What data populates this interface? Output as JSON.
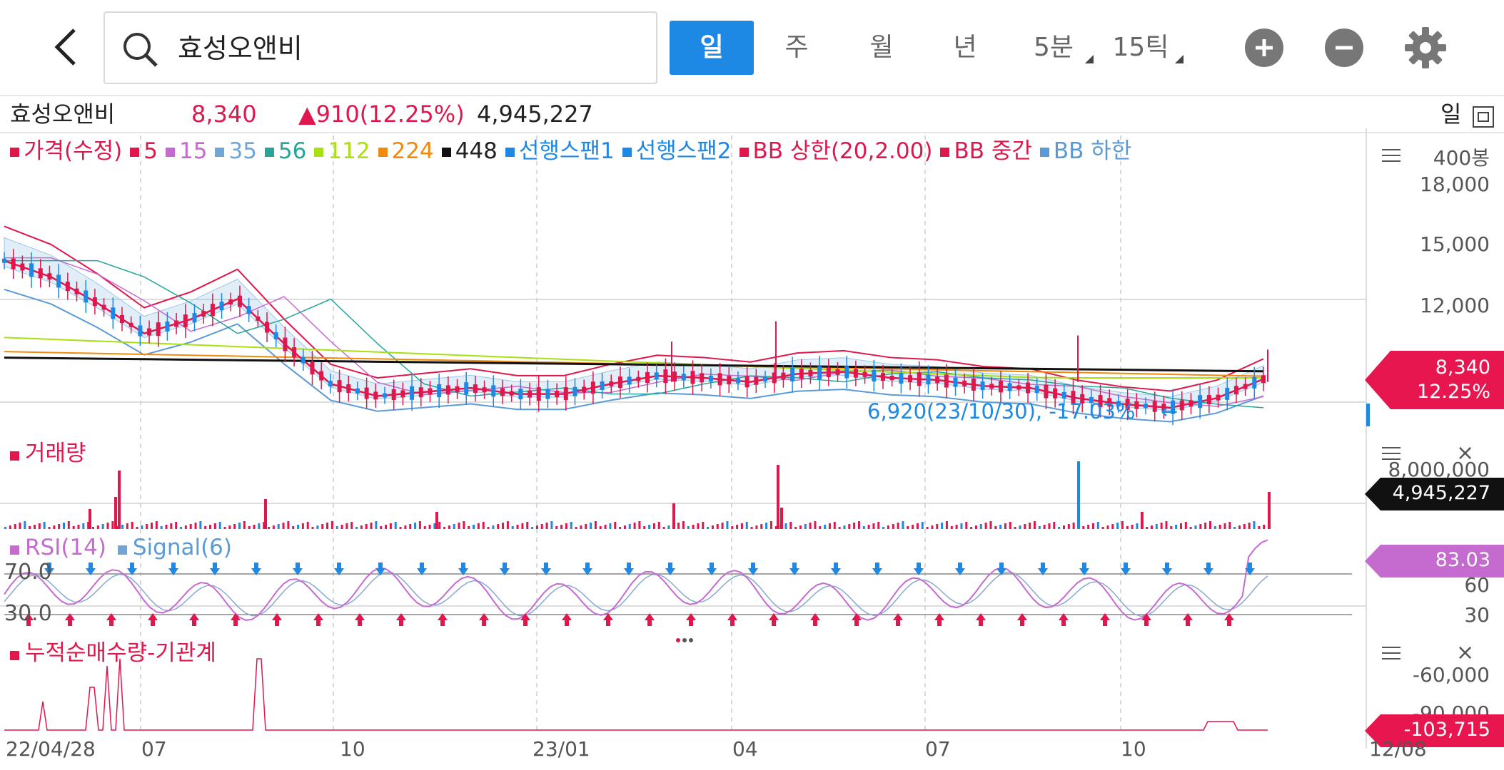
{
  "header": {
    "search_value": "효성오앤비",
    "periods": [
      {
        "label": "일",
        "active": true
      },
      {
        "label": "주",
        "active": false
      },
      {
        "label": "월",
        "active": false
      },
      {
        "label": "년",
        "active": false
      },
      {
        "label": "5분",
        "active": false
      },
      {
        "label": "15틱",
        "active": false
      }
    ]
  },
  "quote": {
    "name": "효성오앤비",
    "price": "8,340",
    "change": "▲910(12.25%)",
    "volume": "4,945,227",
    "chart_period": "일"
  },
  "price_legend": [
    {
      "label": "가격(수정)",
      "color": "#e0174d"
    },
    {
      "label": "5",
      "color": "#e0174d"
    },
    {
      "label": "15",
      "color": "#c56bd0"
    },
    {
      "label": "35",
      "color": "#6fa6d6"
    },
    {
      "label": "56",
      "color": "#26a69a"
    },
    {
      "label": "112",
      "color": "#a8e012"
    },
    {
      "label": "224",
      "color": "#f08a0c"
    },
    {
      "label": "448",
      "color": "#111111"
    },
    {
      "label": "선행스팬1",
      "color": "#1e88e5"
    },
    {
      "label": "선행스팬2",
      "color": "#1e88e5"
    },
    {
      "label": "BB 상한(20,2.00)",
      "color": "#e0174d"
    },
    {
      "label": "BB 중간",
      "color": "#e0174d"
    },
    {
      "label": "BB 하한",
      "color": "#5b9bd5"
    }
  ],
  "price_axis": {
    "count_label": "400봉",
    "ticks": [
      "18,000",
      "15,000",
      "12,000"
    ],
    "current_price": "8,340",
    "current_change": "12.25%",
    "low_annotation": "6,920(23/10/30), -17.03%",
    "low_arrow": "←"
  },
  "volume_panel": {
    "title": "거래량",
    "axis_tick": "8,000,000",
    "current": "4,945,227"
  },
  "rsi_panel": {
    "title_rsi": "RSI(14)",
    "title_signal": "Signal(6)",
    "level_high": "70.0",
    "level_low": "30.0",
    "axis_ticks": [
      "60",
      "30"
    ],
    "current": "83.03"
  },
  "institution_panel": {
    "title": "누적순매수량-기관계",
    "axis_ticks": [
      "-60,000",
      "-90,000"
    ],
    "current": "-103,715"
  },
  "x_axis": {
    "labels": [
      "22/04/28",
      "07",
      "10",
      "23/01",
      "04",
      "07",
      "10",
      "12/08"
    ]
  },
  "colors": {
    "accent": "#1e88e5",
    "up": "#e0174d",
    "down": "#1e88e5",
    "rsi": "#c56bd0"
  },
  "chart_data": {
    "type": "line",
    "title": "효성오앤비",
    "x_range": [
      "22/04/28",
      "12/08"
    ],
    "y_ticks": [
      "18,000",
      "15,000",
      "12,000"
    ],
    "current_price": 8340,
    "min_marker": {
      "value": 6920,
      "date": "23/10/30",
      "change_pct": -17.03
    },
    "price_series_approx": [
      14200,
      13400,
      12100,
      10600,
      11300,
      12300,
      10100,
      8100,
      7500,
      7700,
      7900,
      7600,
      7600,
      8100,
      8500,
      8400,
      8200,
      8600,
      8700,
      8400,
      8300,
      8000,
      7900,
      7400,
      7100,
      6920,
      7400,
      8340
    ],
    "rsi": {
      "current": 83.03,
      "levels": [
        70,
        30
      ]
    },
    "volume_current": 4945227,
    "institution_current": -103715
  }
}
